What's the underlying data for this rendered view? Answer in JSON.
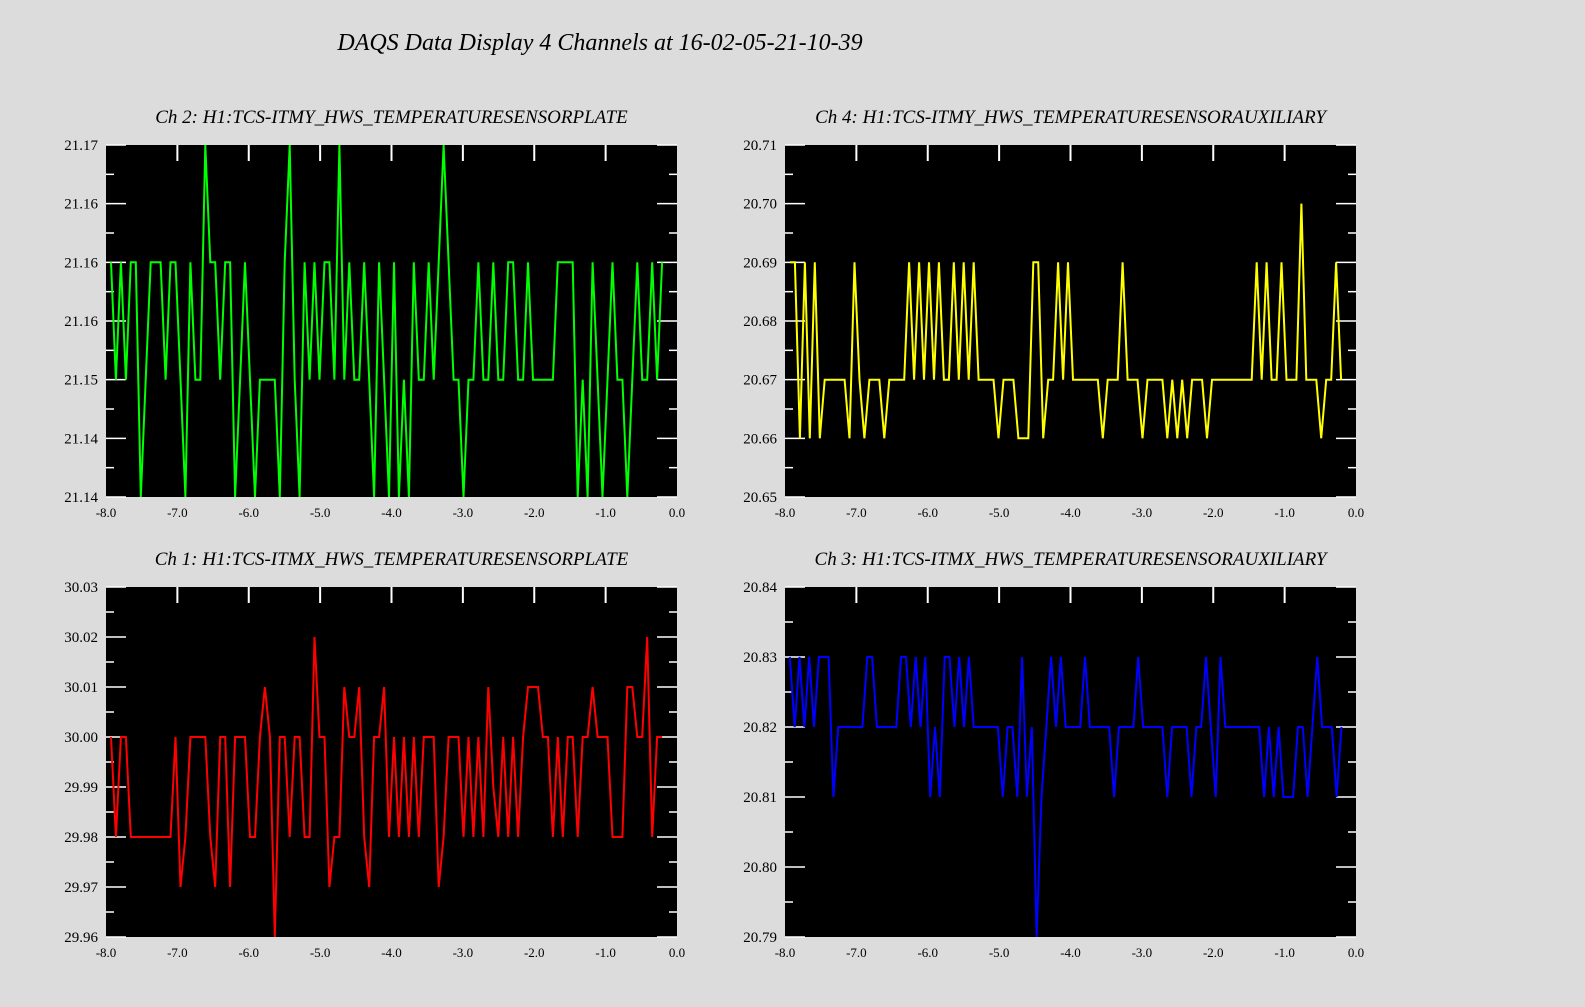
{
  "title": "DAQS Data Display 4 Channels at 16-02-05-21-10-39",
  "chart_data": [
    {
      "type": "line",
      "title": "Ch 2:  H1:TCS-ITMY_HWS_TEMPERATURESENSORPLATE",
      "color": "#00ff00",
      "xlim": [
        -8.0,
        0.0
      ],
      "ylim": [
        21.14,
        21.17
      ],
      "x_ticks": [
        "-8.0",
        "-7.0",
        "-6.0",
        "-5.0",
        "-4.0",
        "-3.0",
        "-2.0",
        "-1.0",
        "0.0"
      ],
      "y_ticks": [
        "21.14",
        "21.14",
        "21.15",
        "21.16",
        "21.16",
        "21.16",
        "21.17"
      ],
      "grid": false,
      "values": [
        21.16,
        21.15,
        21.16,
        21.15,
        21.16,
        21.16,
        21.14,
        21.15,
        21.16,
        21.16,
        21.16,
        21.15,
        21.16,
        21.16,
        21.15,
        21.14,
        21.16,
        21.15,
        21.15,
        21.17,
        21.16,
        21.16,
        21.15,
        21.16,
        21.16,
        21.14,
        21.15,
        21.16,
        21.15,
        21.14,
        21.15,
        21.15,
        21.15,
        21.15,
        21.14,
        21.16,
        21.17,
        21.15,
        21.14,
        21.16,
        21.15,
        21.16,
        21.15,
        21.16,
        21.16,
        21.15,
        21.17,
        21.15,
        21.16,
        21.15,
        21.15,
        21.16,
        21.15,
        21.14,
        21.16,
        21.15,
        21.14,
        21.16,
        21.14,
        21.15,
        21.14,
        21.16,
        21.15,
        21.15,
        21.16,
        21.15,
        21.16,
        21.17,
        21.16,
        21.15,
        21.15,
        21.14,
        21.15,
        21.15,
        21.16,
        21.15,
        21.15,
        21.16,
        21.15,
        21.15,
        21.16,
        21.16,
        21.15,
        21.15,
        21.16,
        21.15,
        21.15,
        21.15,
        21.15,
        21.15,
        21.16,
        21.16,
        21.16,
        21.16,
        21.14,
        21.15,
        21.14,
        21.16,
        21.15,
        21.14,
        21.15,
        21.16,
        21.15,
        21.15,
        21.14,
        21.15,
        21.16,
        21.15,
        21.15,
        21.16,
        21.15,
        21.16
      ]
    },
    {
      "type": "line",
      "title": "Ch 4:  H1:TCS-ITMY_HWS_TEMPERATURESENSORAUXILIARY",
      "color": "#ffff00",
      "xlim": [
        -8.0,
        0.0
      ],
      "ylim": [
        20.65,
        20.71
      ],
      "x_ticks": [
        "-8.0",
        "-7.0",
        "-6.0",
        "-5.0",
        "-4.0",
        "-3.0",
        "-2.0",
        "-1.0",
        "0.0"
      ],
      "y_ticks": [
        "20.65",
        "20.66",
        "20.67",
        "20.68",
        "20.69",
        "20.70",
        "20.71"
      ],
      "grid": false,
      "values": [
        20.69,
        20.69,
        20.66,
        20.69,
        20.66,
        20.69,
        20.66,
        20.67,
        20.67,
        20.67,
        20.67,
        20.67,
        20.66,
        20.69,
        20.67,
        20.66,
        20.67,
        20.67,
        20.67,
        20.66,
        20.67,
        20.67,
        20.67,
        20.67,
        20.69,
        20.67,
        20.69,
        20.67,
        20.69,
        20.67,
        20.69,
        20.67,
        20.67,
        20.69,
        20.67,
        20.69,
        20.67,
        20.69,
        20.67,
        20.67,
        20.67,
        20.67,
        20.66,
        20.67,
        20.67,
        20.67,
        20.66,
        20.66,
        20.66,
        20.69,
        20.69,
        20.66,
        20.67,
        20.67,
        20.69,
        20.67,
        20.69,
        20.67,
        20.67,
        20.67,
        20.67,
        20.67,
        20.67,
        20.66,
        20.67,
        20.67,
        20.67,
        20.69,
        20.67,
        20.67,
        20.67,
        20.66,
        20.67,
        20.67,
        20.67,
        20.67,
        20.66,
        20.67,
        20.66,
        20.67,
        20.66,
        20.67,
        20.67,
        20.67,
        20.66,
        20.67,
        20.67,
        20.67,
        20.67,
        20.67,
        20.67,
        20.67,
        20.67,
        20.67,
        20.69,
        20.67,
        20.69,
        20.67,
        20.67,
        20.69,
        20.67,
        20.67,
        20.67,
        20.7,
        20.67,
        20.67,
        20.67,
        20.66,
        20.67,
        20.67,
        20.69,
        20.67
      ]
    },
    {
      "type": "line",
      "title": "Ch 1:  H1:TCS-ITMX_HWS_TEMPERATURESENSORPLATE",
      "color": "#ff0000",
      "xlim": [
        -8.0,
        0.0
      ],
      "ylim": [
        29.96,
        30.03
      ],
      "x_ticks": [
        "-8.0",
        "-7.0",
        "-6.0",
        "-5.0",
        "-4.0",
        "-3.0",
        "-2.0",
        "-1.0",
        "0.0"
      ],
      "y_ticks": [
        "29.96",
        "29.97",
        "29.98",
        "29.99",
        "30.00",
        "30.01",
        "30.02",
        "30.03"
      ],
      "grid": false,
      "values": [
        30.0,
        29.98,
        30.0,
        30.0,
        29.98,
        29.98,
        29.98,
        29.98,
        29.98,
        29.98,
        29.98,
        29.98,
        29.98,
        30.0,
        29.97,
        29.98,
        30.0,
        30.0,
        30.0,
        30.0,
        29.98,
        29.97,
        30.0,
        30.0,
        29.97,
        30.0,
        30.0,
        30.0,
        29.98,
        29.98,
        30.0,
        30.01,
        30.0,
        29.96,
        30.0,
        30.0,
        29.98,
        30.0,
        30.0,
        29.98,
        29.98,
        30.02,
        30.0,
        30.0,
        29.97,
        29.98,
        29.98,
        30.01,
        30.0,
        30.0,
        30.01,
        29.98,
        29.97,
        30.0,
        30.0,
        30.01,
        29.98,
        30.0,
        29.98,
        30.0,
        29.98,
        30.0,
        29.98,
        30.0,
        30.0,
        30.0,
        29.97,
        29.98,
        30.0,
        30.0,
        30.0,
        29.98,
        30.0,
        29.98,
        30.0,
        29.98,
        30.01,
        29.99,
        29.98,
        30.0,
        29.98,
        30.0,
        29.98,
        30.0,
        30.01,
        30.01,
        30.01,
        30.0,
        30.0,
        29.98,
        30.0,
        29.98,
        30.0,
        30.0,
        29.98,
        30.0,
        30.0,
        30.01,
        30.0,
        30.0,
        30.0,
        29.98,
        29.98,
        29.98,
        30.01,
        30.01,
        30.0,
        30.0,
        30.02,
        29.98,
        30.0,
        30.0
      ]
    },
    {
      "type": "line",
      "title": "Ch 3:  H1:TCS-ITMX_HWS_TEMPERATURESENSORAUXILIARY",
      "color": "#0000ff",
      "xlim": [
        -8.0,
        0.0
      ],
      "ylim": [
        20.79,
        20.84
      ],
      "x_ticks": [
        "-8.0",
        "-7.0",
        "-6.0",
        "-5.0",
        "-4.0",
        "-3.0",
        "-2.0",
        "-1.0",
        "0.0"
      ],
      "y_ticks": [
        "20.79",
        "20.80",
        "20.81",
        "20.82",
        "20.83",
        "20.84"
      ],
      "grid": false,
      "values": [
        20.83,
        20.82,
        20.83,
        20.82,
        20.83,
        20.82,
        20.83,
        20.83,
        20.83,
        20.81,
        20.82,
        20.82,
        20.82,
        20.82,
        20.82,
        20.82,
        20.83,
        20.83,
        20.82,
        20.82,
        20.82,
        20.82,
        20.82,
        20.83,
        20.83,
        20.82,
        20.83,
        20.82,
        20.83,
        20.81,
        20.82,
        20.81,
        20.83,
        20.83,
        20.82,
        20.83,
        20.82,
        20.83,
        20.82,
        20.82,
        20.82,
        20.82,
        20.82,
        20.82,
        20.81,
        20.82,
        20.82,
        20.81,
        20.83,
        20.81,
        20.82,
        20.79,
        20.81,
        20.82,
        20.83,
        20.82,
        20.83,
        20.82,
        20.82,
        20.82,
        20.82,
        20.83,
        20.82,
        20.82,
        20.82,
        20.82,
        20.82,
        20.81,
        20.82,
        20.82,
        20.82,
        20.82,
        20.83,
        20.82,
        20.82,
        20.82,
        20.82,
        20.82,
        20.81,
        20.82,
        20.82,
        20.82,
        20.82,
        20.81,
        20.82,
        20.82,
        20.83,
        20.82,
        20.81,
        20.83,
        20.82,
        20.82,
        20.82,
        20.82,
        20.82,
        20.82,
        20.82,
        20.82,
        20.81,
        20.82,
        20.81,
        20.82,
        20.81,
        20.81,
        20.81,
        20.82,
        20.82,
        20.81,
        20.82,
        20.83,
        20.82,
        20.82,
        20.82,
        20.81,
        20.82
      ]
    }
  ]
}
